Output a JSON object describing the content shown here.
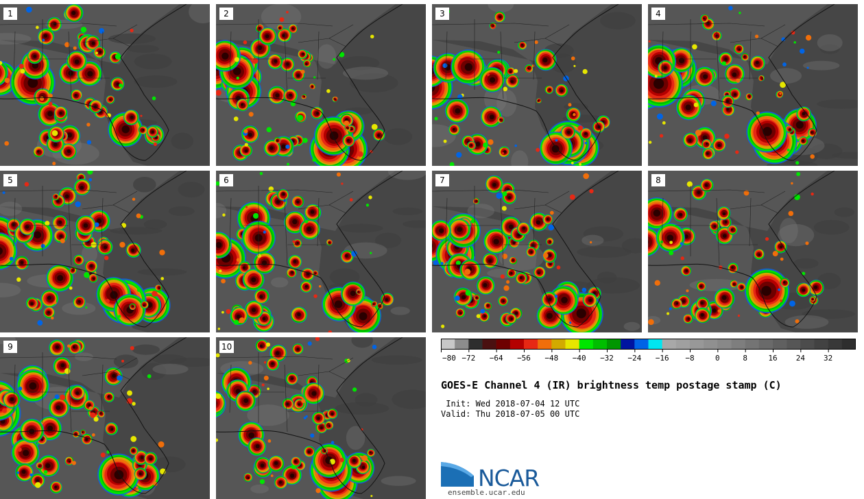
{
  "stamps": [
    {
      "label": "1",
      "seed": 11
    },
    {
      "label": "2",
      "seed": 23
    },
    {
      "label": "3",
      "seed": 37
    },
    {
      "label": "4",
      "seed": 41
    },
    {
      "label": "5",
      "seed": 53
    },
    {
      "label": "6",
      "seed": 67
    },
    {
      "label": "7",
      "seed": 71
    },
    {
      "label": "8",
      "seed": 83
    },
    {
      "label": "9",
      "seed": 97
    },
    {
      "label": "10",
      "seed": 101
    }
  ],
  "colorbar": {
    "colors": [
      "#c8c8c8",
      "#8c8c8c",
      "#2e2e2e",
      "#4a1010",
      "#6e0000",
      "#b40000",
      "#e62814",
      "#f06e0a",
      "#d2aa00",
      "#e6e600",
      "#00e600",
      "#00be00",
      "#009600",
      "#0014a0",
      "#0064e6",
      "#00e6f0",
      "#a8a8a8",
      "#a0a0a0",
      "#989898",
      "#909090",
      "#888888",
      "#7e7e7e",
      "#747474",
      "#6a6a6a",
      "#606060",
      "#565656",
      "#4c4c4c",
      "#424242",
      "#383838",
      "#2e2e2e"
    ],
    "tick_labels": [
      "−80",
      "−72",
      "−64",
      "−56",
      "−48",
      "−40",
      "−32",
      "−24",
      "−16",
      "−8",
      "0",
      "8",
      "16",
      "24",
      "32"
    ]
  },
  "title": "GOES-E Channel 4 (IR) brightness temp postage stamp (C)",
  "init_text": " Init: Wed 2018-07-04 12 UTC",
  "valid_text": "Valid: Thu 2018-07-05 00 UTC",
  "logo_text": "NCAR",
  "logo_url": "ensemble.ucar.edu"
}
